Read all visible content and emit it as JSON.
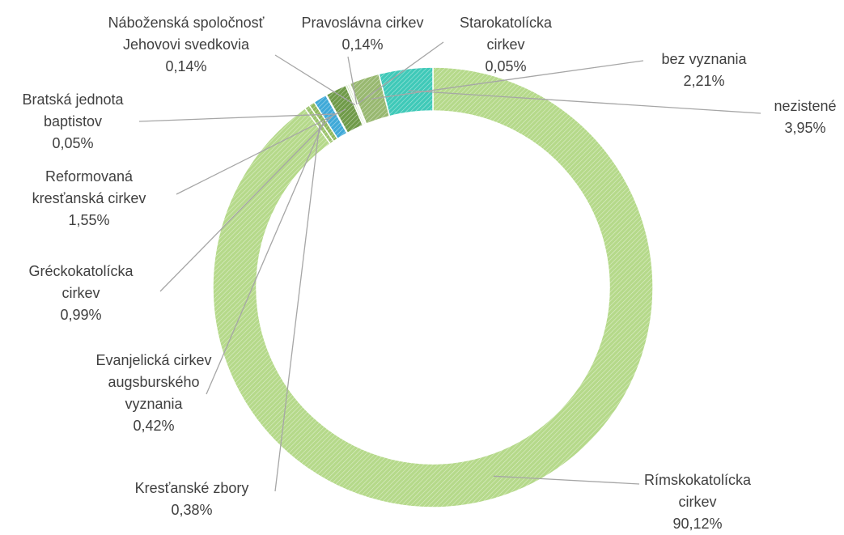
{
  "chart_data": {
    "type": "donut",
    "categories": [
      "Rímskokatolícka cirkev",
      "Kresťanské zbory",
      "Evanjelická cirkev augsburského vyznania",
      "Gréckokatolícka cirkev",
      "Bratská jednota baptistov",
      "Reformovaná kresťanská cirkev",
      "Náboženská spoločnosť Jehovovi svedkovia",
      "Pravoslávna cirkev",
      "Starokatolícka cirkev",
      "bez vyznania",
      "nezistené"
    ],
    "values": [
      90.12,
      0.38,
      0.42,
      0.99,
      0.05,
      1.55,
      0.14,
      0.14,
      0.05,
      2.21,
      3.95
    ],
    "value_labels": [
      "90,12%",
      "0,38%",
      "0,42%",
      "0,99%",
      "0,05%",
      "1,55%",
      "0,14%",
      "0,14%",
      "0,05%",
      "2,21%",
      "3,95%"
    ],
    "colors": [
      "#b5d98a",
      "#9bc36c",
      "#8fb85c",
      "#3fa9d8",
      "#7ec0e0",
      "#6f9a48",
      "#c3ddb0",
      "#d9e8c8",
      "#a8cf85",
      "#98b870",
      "#3fc9b8"
    ]
  }
}
